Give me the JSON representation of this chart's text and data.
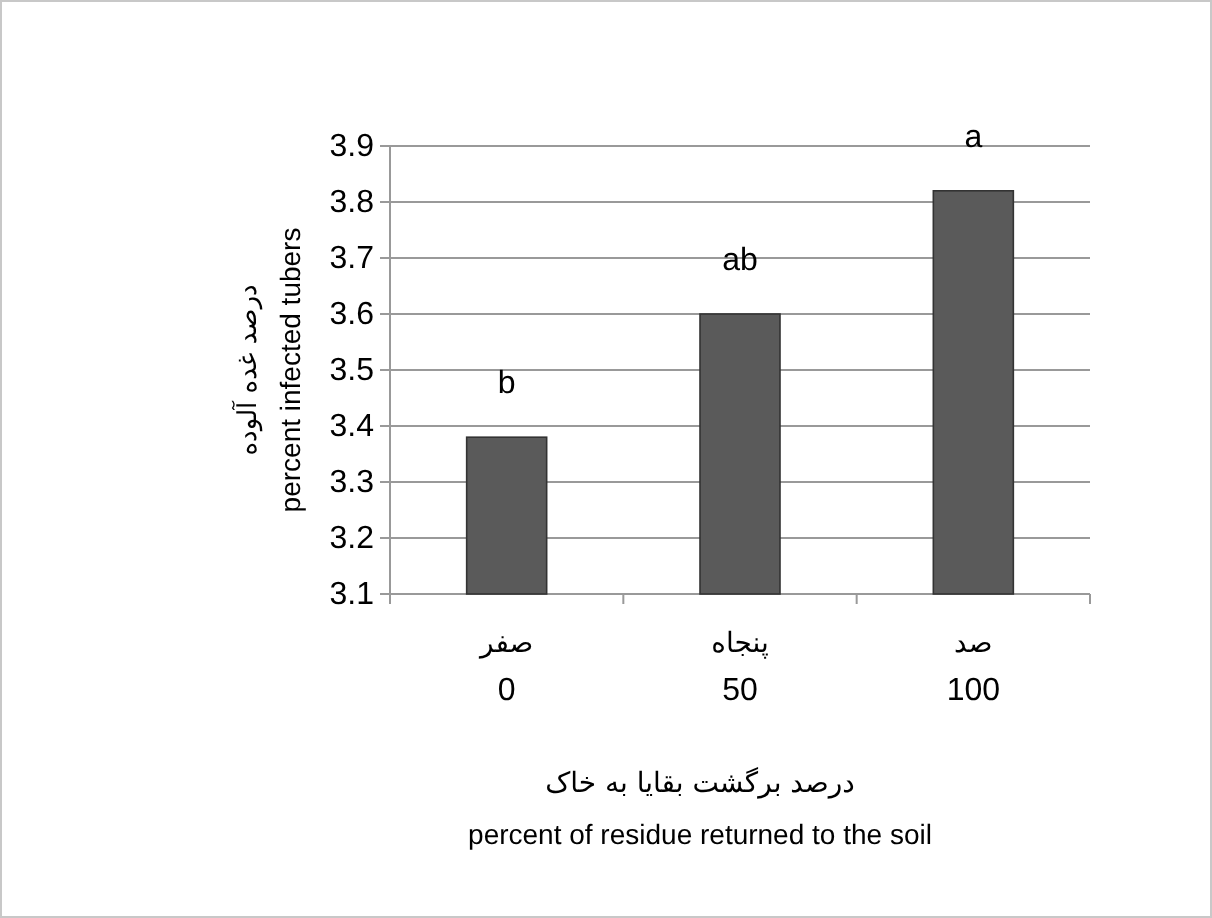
{
  "chart_data": {
    "type": "bar",
    "ylabel": "percent infected tubers",
    "xlabel": "percent of residue returned to the soil",
    "categories": [
      "0",
      "50",
      "100"
    ],
    "values": [
      3.38,
      3.6,
      3.82
    ],
    "color": "#5a5a5a",
    "ylim": [
      3.1,
      3.9
    ],
    "yticks": [
      3.1,
      3.2,
      3.3,
      3.4,
      3.5,
      3.6,
      3.7,
      3.8,
      3.9
    ],
    "grid": "y",
    "annotations": [
      {
        "text": "b",
        "x": "0",
        "y": 3.38
      },
      {
        "text": "ab",
        "x": "50",
        "y": 3.6
      },
      {
        "text": "a",
        "x": "100",
        "y": 3.82
      },
      "صفر",
      "پنجاه",
      "صد",
      "درصد برگشت بقایا به خاک",
      "درصد غده آلوده"
    ]
  }
}
